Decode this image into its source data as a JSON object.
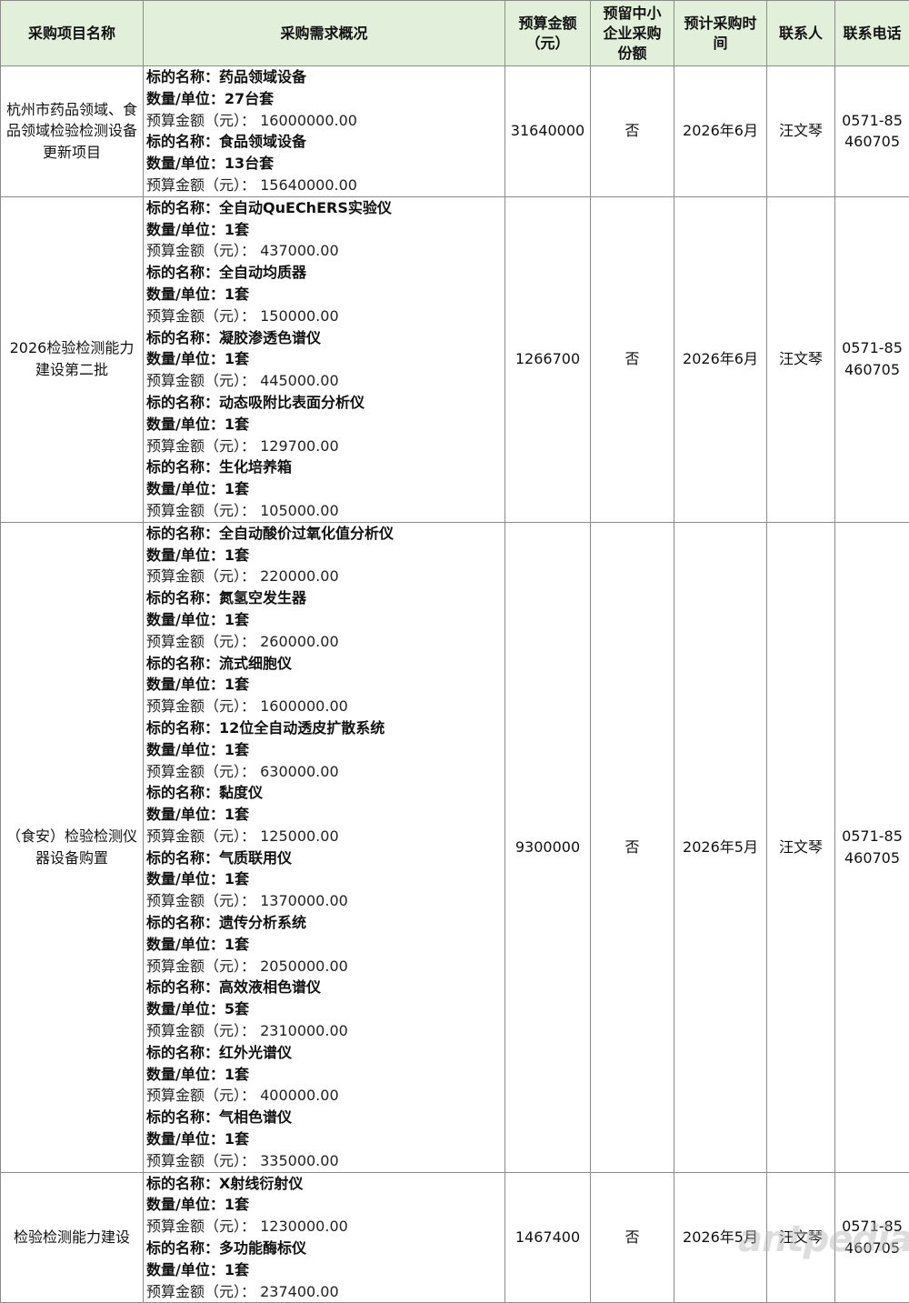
{
  "headers": {
    "project": "采购项目名称",
    "desc": "采购需求概况",
    "budget": "预算金额（元）",
    "sme": "预留中小企业采购份额",
    "time": "预计采购时间",
    "contact": "联系人",
    "phone": "联系电话"
  },
  "labels": {
    "name": "标的名称：",
    "qty": "数量/单位：",
    "budget": "预算金额（元）： "
  },
  "rows": [
    {
      "project": "杭州市药品领域、食品领域检验检测设备更新项目",
      "budget": "31640000",
      "sme": "否",
      "time": "2026年6月",
      "contact": "汪文琴",
      "phone": "0571-85460705",
      "items": [
        {
          "name": "药品领域设备",
          "qty": "27台套",
          "budget": "16000000.00"
        },
        {
          "name": "食品领域设备",
          "qty": "13台套",
          "budget": "15640000.00"
        }
      ]
    },
    {
      "project": "2026检验检测能力建设第二批",
      "budget": "1266700",
      "sme": "否",
      "time": "2026年6月",
      "contact": "汪文琴",
      "phone": "0571-85460705",
      "items": [
        {
          "name": "全自动QuEChERS实验仪",
          "qty": "1套",
          "budget": "437000.00"
        },
        {
          "name": "全自动均质器",
          "qty": "1套",
          "budget": "150000.00"
        },
        {
          "name": "凝胶渗透色谱仪",
          "qty": "1套",
          "budget": "445000.00"
        },
        {
          "name": "动态吸附比表面分析仪",
          "qty": "1套",
          "budget": "129700.00"
        },
        {
          "name": "生化培养箱",
          "qty": "1套",
          "budget": "105000.00"
        }
      ]
    },
    {
      "project": "（食安）检验检测仪器设备购置",
      "budget": "9300000",
      "sme": "否",
      "time": "2026年5月",
      "contact": "汪文琴",
      "phone": "0571-85460705",
      "items": [
        {
          "name": "全自动酸价过氧化值分析仪",
          "qty": "1套",
          "budget": "220000.00"
        },
        {
          "name": "氮氢空发生器",
          "qty": "1套",
          "budget": "260000.00"
        },
        {
          "name": "流式细胞仪",
          "qty": "1套",
          "budget": "1600000.00"
        },
        {
          "name": "12位全自动透皮扩散系统",
          "qty": "1套",
          "budget": "630000.00"
        },
        {
          "name": "黏度仪",
          "qty": "1套",
          "budget": "125000.00"
        },
        {
          "name": "气质联用仪",
          "qty": "1套",
          "budget": "1370000.00"
        },
        {
          "name": "遗传分析系统",
          "qty": "1套",
          "budget": "2050000.00"
        },
        {
          "name": "高效液相色谱仪",
          "qty": "5套",
          "budget": "2310000.00"
        },
        {
          "name": "红外光谱仪",
          "qty": "1套",
          "budget": "400000.00"
        },
        {
          "name": "气相色谱仪",
          "qty": "1套",
          "budget": "335000.00"
        }
      ]
    },
    {
      "project": "检验检测能力建设",
      "budget": "1467400",
      "sme": "否",
      "time": "2026年5月",
      "contact": "汪文琴",
      "phone": "0571-85460705",
      "items": [
        {
          "name": "X射线衍射仪",
          "qty": "1套",
          "budget": "1230000.00"
        },
        {
          "name": "多功能酶标仪",
          "qty": "1套",
          "budget": "237400.00"
        }
      ]
    }
  ],
  "watermark": "antpedia",
  "colors": {
    "header_bg": "#e2efda",
    "border": "#8c8c8c"
  }
}
